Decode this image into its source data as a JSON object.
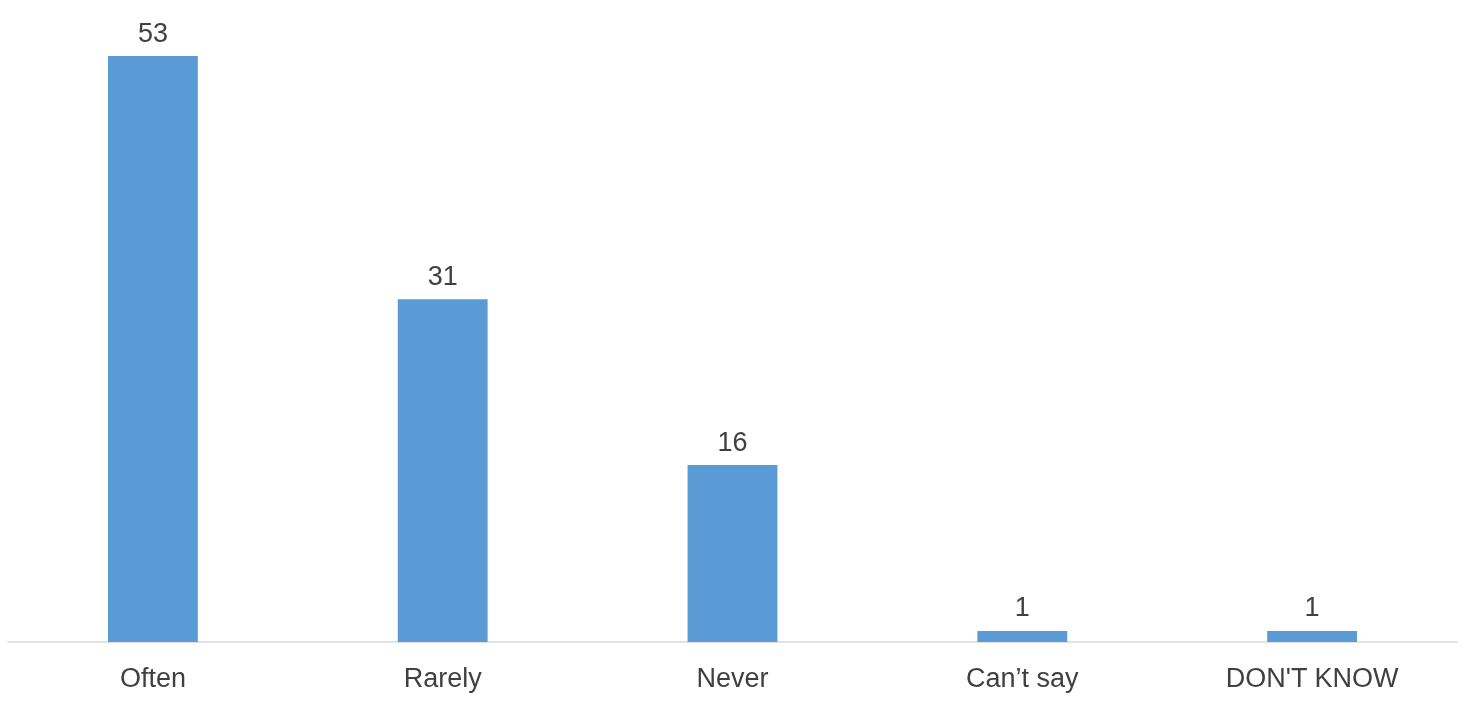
{
  "chart_data": {
    "type": "bar",
    "categories": [
      "Often",
      "Rarely",
      "Never",
      "Can’t say",
      "DON'T KNOW"
    ],
    "values": [
      53,
      31,
      16,
      1,
      1
    ],
    "color": "#5b9bd5",
    "data_labels": true
  }
}
